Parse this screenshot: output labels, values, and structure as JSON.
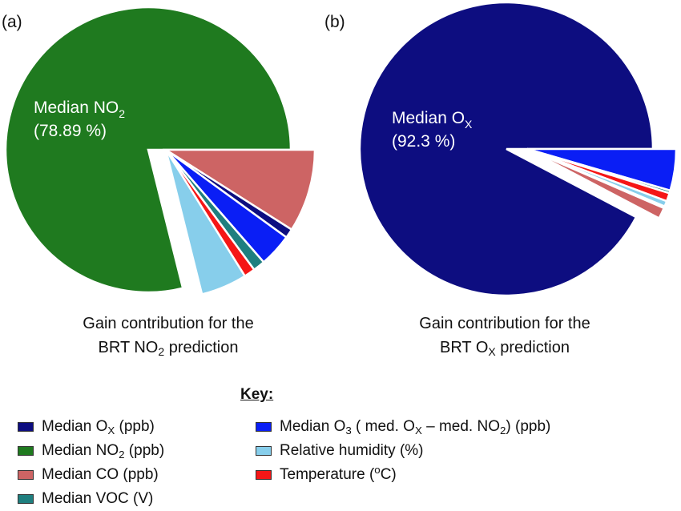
{
  "panels": [
    {
      "label": "(a)",
      "caption_line1": "Gain contribution for the",
      "caption_line2_pre": "BRT NO",
      "caption_line2_sub": "2",
      "caption_line2_post": " prediction",
      "center_label": "Median  NO",
      "center_label_sub": "2",
      "center_value": "(78.89 %)"
    },
    {
      "label": "(b)",
      "caption_line1": "Gain contribution for the",
      "caption_line2_pre": "BRT O",
      "caption_line2_sub": "X",
      "caption_line2_post": " prediction",
      "center_label": "Median  O",
      "center_label_sub": "X",
      "center_value": "(92.3 %)"
    }
  ],
  "key": {
    "title": "Key:",
    "items": [
      {
        "id": "ox",
        "pre": "Median O",
        "sub": "X",
        "post": " (ppb)",
        "color": "#0d0d80"
      },
      {
        "id": "no2",
        "pre": "Median NO",
        "sub": "2",
        "post": " (ppb)",
        "color": "#1f7a1f"
      },
      {
        "id": "co",
        "pre": "Median CO (ppb)",
        "color": "#cd6464"
      },
      {
        "id": "voc",
        "pre": "Median VOC (V)",
        "color": "#1f7f7f"
      },
      {
        "id": "o3",
        "pre": "Median O",
        "sub": "3",
        "post": " ( med. O",
        "sub2": "X",
        "post2": " – med. NO",
        "sub3": "2",
        "post3": ") (ppb)",
        "color": "#0a1ef5"
      },
      {
        "id": "rh",
        "pre": "Relative humidity (%)",
        "color": "#87ceeb"
      },
      {
        "id": "temp",
        "pre": "Temperature (",
        "sup": "o",
        "post": "C)",
        "color": "#f51616"
      }
    ]
  },
  "chart_data": [
    {
      "type": "pie",
      "title": "Gain contribution for the BRT NO2 prediction",
      "slices": [
        {
          "name": "Median NO2 (ppb)",
          "value": 78.89,
          "color": "#1f7a1f",
          "exploded": false
        },
        {
          "name": "Median CO (ppb)",
          "value": 9.0,
          "color": "#cd6464",
          "exploded": true
        },
        {
          "name": "Median Ox (ppb)",
          "value": 1.0,
          "color": "#0d0d80",
          "exploded": true
        },
        {
          "name": "Median O3 (ppb)",
          "value": 3.6,
          "color": "#0a1ef5",
          "exploded": true
        },
        {
          "name": "Median VOC (V)",
          "value": 1.3,
          "color": "#1f7f7f",
          "exploded": true
        },
        {
          "name": "Temperature (oC)",
          "value": 1.2,
          "color": "#f51616",
          "exploded": true
        },
        {
          "name": "Relative humidity (%)",
          "value": 5.0,
          "color": "#87ceeb",
          "exploded": true
        }
      ]
    },
    {
      "type": "pie",
      "title": "Gain contribution for the BRT Ox prediction",
      "slices": [
        {
          "name": "Median Ox (ppb)",
          "value": 92.3,
          "color": "#0d0d80",
          "exploded": false
        },
        {
          "name": "Median O3 (ppb)",
          "value": 4.5,
          "color": "#0a1ef5",
          "exploded": true
        },
        {
          "name": "Median VOC (V)",
          "value": 0.3,
          "color": "#1f7f7f",
          "exploded": true
        },
        {
          "name": "Temperature (oC)",
          "value": 0.9,
          "color": "#f51616",
          "exploded": true
        },
        {
          "name": "Relative humidity (%)",
          "value": 0.6,
          "color": "#87ceeb",
          "exploded": true
        },
        {
          "name": "Median NO2 (ppb)",
          "value": 0.2,
          "color": "#1f7a1f",
          "exploded": true
        },
        {
          "name": "Median CO (ppb)",
          "value": 1.2,
          "color": "#cd6464",
          "exploded": true
        }
      ]
    }
  ]
}
